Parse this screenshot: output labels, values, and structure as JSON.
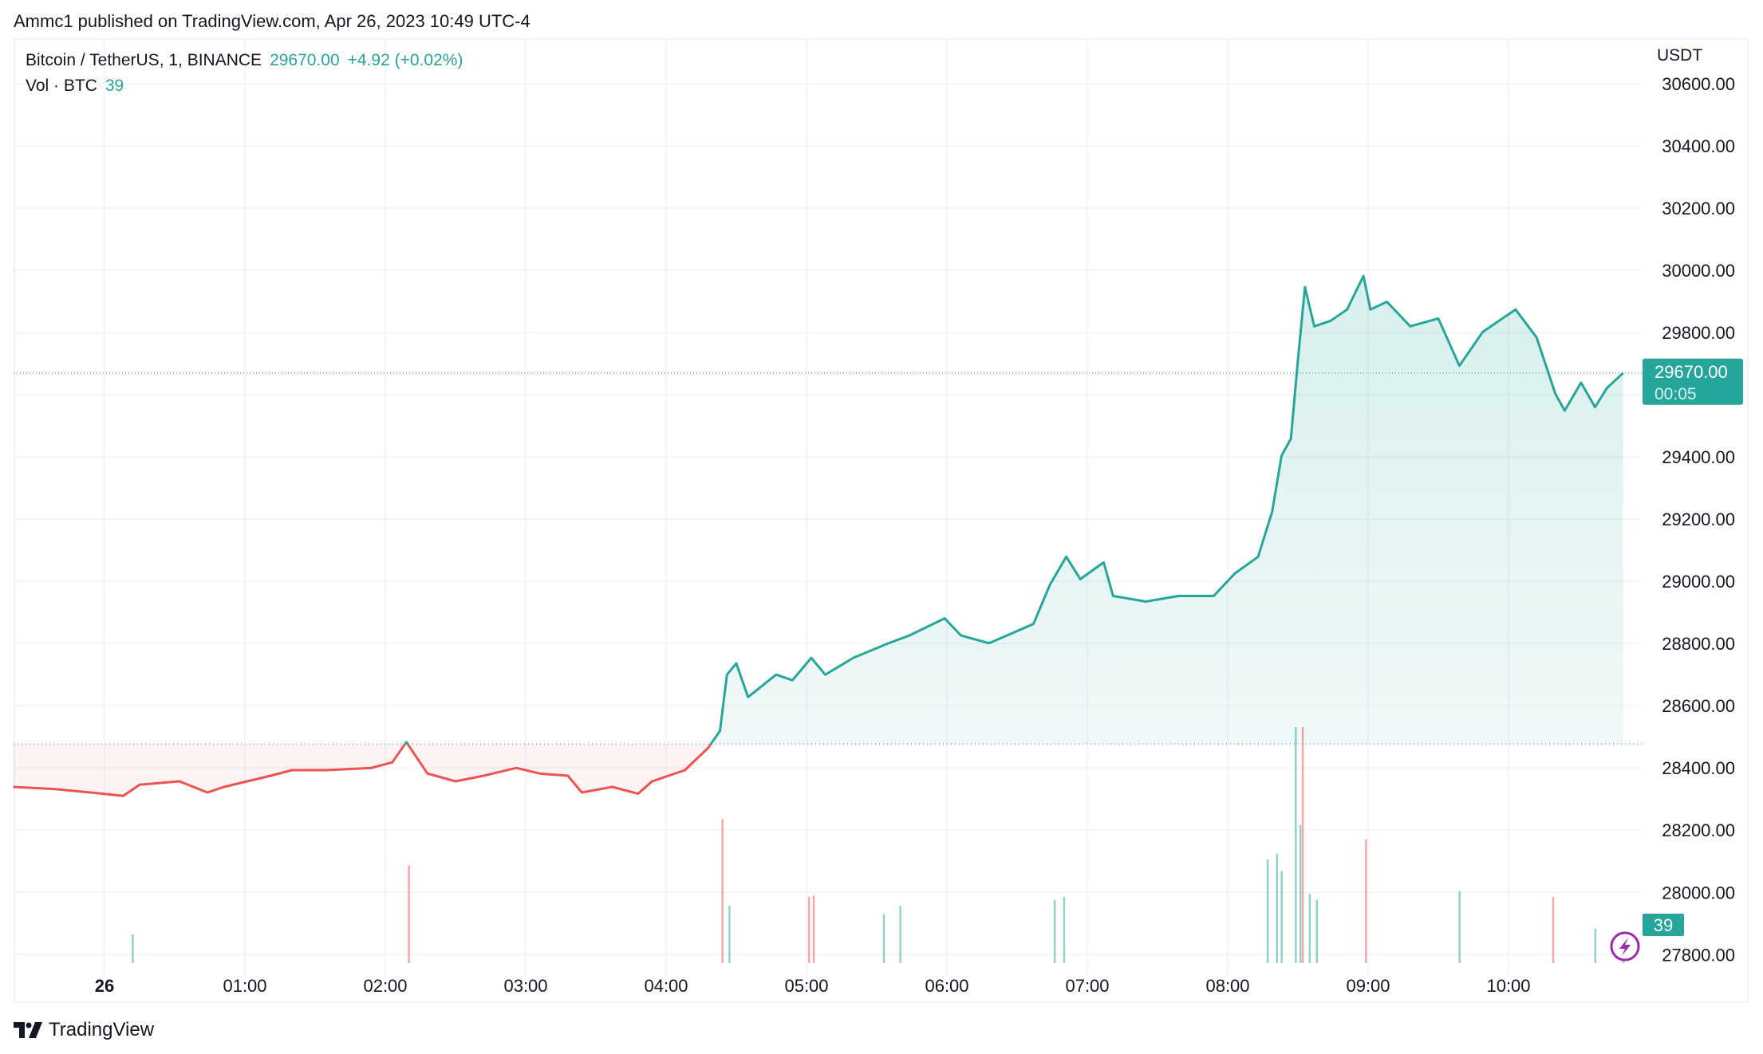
{
  "header": {
    "published": "Ammc1 published on TradingView.com, Apr 26, 2023 10:49 UTC-4"
  },
  "legend": {
    "symbol": "Bitcoin / TetherUS, 1, BINANCE",
    "last": "29670.00",
    "change": "+4.92 (+0.02%)",
    "volume_label": "Vol · BTC",
    "volume_value": "39"
  },
  "axis": {
    "currency": "USDT",
    "price_tag": "29670.00",
    "countdown": "00:05",
    "volume_tag": "39"
  },
  "footer": {
    "brand": "TradingView"
  },
  "colors": {
    "up": "#26a69a",
    "down": "#ef5350",
    "grid": "#f0f3fa",
    "alert": "#9c27b0"
  },
  "chart_data": {
    "type": "area",
    "style": "baseline",
    "baseline": 28477,
    "ylim": [
      27800,
      30600
    ],
    "yticks": [
      "30600.00",
      "30400.00",
      "30200.00",
      "30000.00",
      "29800.00",
      "29400.00",
      "29200.00",
      "29000.00",
      "28800.00",
      "28600.00",
      "28400.00",
      "28200.00",
      "28000.00",
      "27800.00"
    ],
    "xticks": [
      "26",
      "01:00",
      "02:00",
      "03:00",
      "04:00",
      "05:00",
      "06:00",
      "07:00",
      "08:00",
      "09:00",
      "10:00"
    ],
    "grid": true,
    "price": [
      [
        "23:21",
        28339
      ],
      [
        "23:39",
        28332
      ],
      [
        "23:54",
        28321
      ],
      [
        "00:08",
        28310
      ],
      [
        "00:15",
        28346
      ],
      [
        "00:32",
        28357
      ],
      [
        "00:44",
        28321
      ],
      [
        "00:51",
        28339
      ],
      [
        "01:11",
        28375
      ],
      [
        "01:20",
        28393
      ],
      [
        "01:35",
        28393
      ],
      [
        "01:54",
        28400
      ],
      [
        "02:03",
        28418
      ],
      [
        "02:09",
        28483
      ],
      [
        "02:18",
        28382
      ],
      [
        "02:30",
        28357
      ],
      [
        "02:42",
        28375
      ],
      [
        "02:56",
        28400
      ],
      [
        "03:06",
        28382
      ],
      [
        "03:18",
        28375
      ],
      [
        "03:24",
        28321
      ],
      [
        "03:37",
        28339
      ],
      [
        "03:48",
        28317
      ],
      [
        "03:54",
        28357
      ],
      [
        "04:08",
        28393
      ],
      [
        "04:18",
        28465
      ],
      [
        "04:23",
        28519
      ],
      [
        "04:26",
        28700
      ],
      [
        "04:30",
        28736
      ],
      [
        "04:35",
        28628
      ],
      [
        "04:47",
        28700
      ],
      [
        "04:54",
        28682
      ],
      [
        "05:02",
        28754
      ],
      [
        "05:08",
        28700
      ],
      [
        "05:20",
        28754
      ],
      [
        "05:35",
        28801
      ],
      [
        "05:44",
        28826
      ],
      [
        "05:59",
        28881
      ],
      [
        "06:06",
        28826
      ],
      [
        "06:18",
        28801
      ],
      [
        "06:37",
        28863
      ],
      [
        "06:44",
        28989
      ],
      [
        "06:51",
        29079
      ],
      [
        "06:57",
        29007
      ],
      [
        "07:07",
        29061
      ],
      [
        "07:11",
        28953
      ],
      [
        "07:25",
        28935
      ],
      [
        "07:39",
        28953
      ],
      [
        "07:54",
        28953
      ],
      [
        "08:03",
        29025
      ],
      [
        "08:13",
        29079
      ],
      [
        "08:19",
        29224
      ],
      [
        "08:23",
        29404
      ],
      [
        "08:27",
        29459
      ],
      [
        "08:30",
        29711
      ],
      [
        "08:33",
        29946
      ],
      [
        "08:37",
        29820
      ],
      [
        "08:44",
        29838
      ],
      [
        "08:51",
        29874
      ],
      [
        "08:58",
        29982
      ],
      [
        "09:01",
        29874
      ],
      [
        "09:08",
        29899
      ],
      [
        "09:18",
        29820
      ],
      [
        "09:30",
        29845
      ],
      [
        "09:39",
        29693
      ],
      [
        "09:49",
        29802
      ],
      [
        "10:03",
        29874
      ],
      [
        "10:12",
        29784
      ],
      [
        "10:20",
        29603
      ],
      [
        "10:24",
        29549
      ],
      [
        "10:31",
        29639
      ],
      [
        "10:37",
        29560
      ],
      [
        "10:42",
        29621
      ],
      [
        "10:49",
        29670
      ]
    ],
    "volume": [
      [
        "00:12",
        100,
        "up"
      ],
      [
        "02:10",
        340,
        "down"
      ],
      [
        "04:24",
        500,
        "down"
      ],
      [
        "04:27",
        200,
        "up"
      ],
      [
        "05:01",
        230,
        "down"
      ],
      [
        "05:03",
        235,
        "down"
      ],
      [
        "05:33",
        170,
        "up"
      ],
      [
        "05:40",
        200,
        "up"
      ],
      [
        "06:46",
        220,
        "up"
      ],
      [
        "06:50",
        230,
        "up"
      ],
      [
        "08:17",
        360,
        "up"
      ],
      [
        "08:21",
        380,
        "up"
      ],
      [
        "08:23",
        320,
        "up"
      ],
      [
        "08:29",
        820,
        "up"
      ],
      [
        "08:31",
        480,
        "up"
      ],
      [
        "08:32",
        820,
        "down"
      ],
      [
        "08:35",
        240,
        "up"
      ],
      [
        "08:38",
        220,
        "up"
      ],
      [
        "08:59",
        430,
        "down"
      ],
      [
        "09:39",
        250,
        "up"
      ],
      [
        "10:19",
        230,
        "down"
      ],
      [
        "10:37",
        120,
        "up"
      ],
      [
        "10:49",
        39,
        "up"
      ]
    ]
  }
}
